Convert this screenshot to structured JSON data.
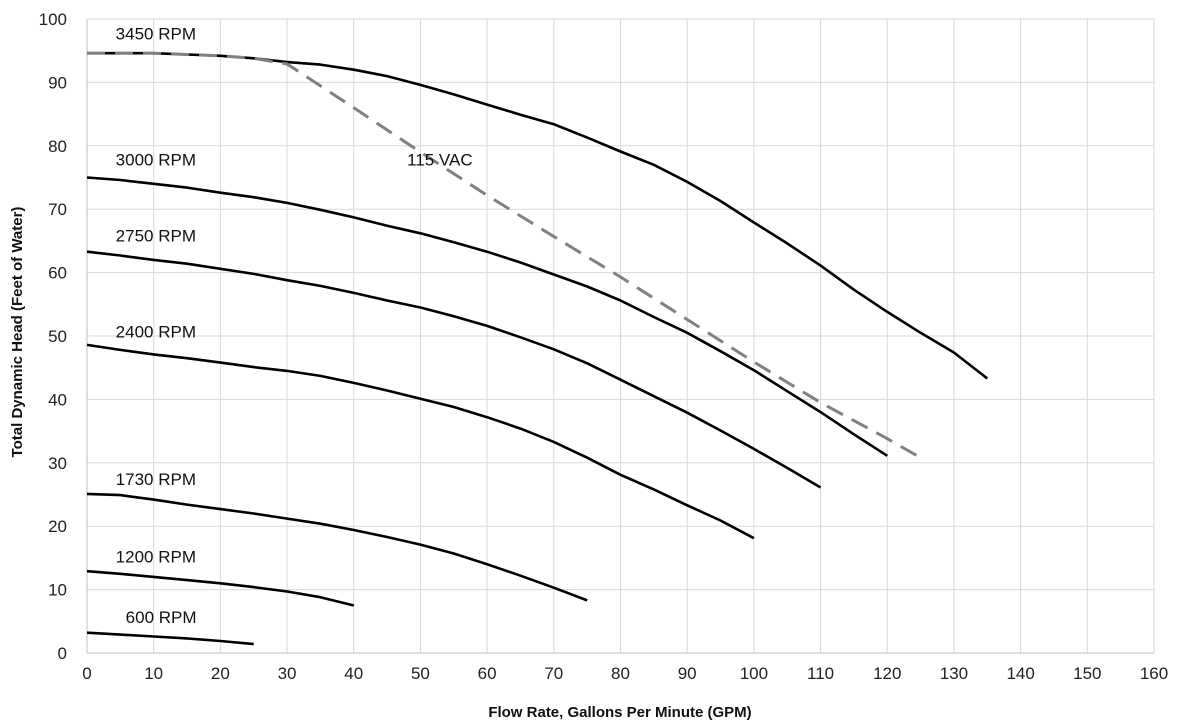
{
  "chart_data": {
    "type": "line",
    "title": "",
    "xlabel": "Flow Rate, Gallons Per Minute (GPM)",
    "ylabel": "Total Dynamic Head (Feet of Water)",
    "xlim": [
      0,
      160
    ],
    "ylim": [
      0,
      100
    ],
    "x_ticks": [
      0,
      10,
      20,
      30,
      40,
      50,
      60,
      70,
      80,
      90,
      100,
      110,
      120,
      130,
      140,
      150,
      160
    ],
    "y_ticks": [
      0,
      10,
      20,
      30,
      40,
      50,
      60,
      70,
      80,
      90,
      100
    ],
    "grid": true,
    "series": [
      {
        "name": "3450 RPM",
        "style": "solid",
        "color": "#000000",
        "x": [
          0,
          5,
          10,
          15,
          20,
          25,
          30,
          35,
          40,
          45,
          50,
          55,
          60,
          65,
          70,
          75,
          80,
          85,
          90,
          95,
          100,
          105,
          110,
          115,
          120,
          125,
          130,
          135
        ],
        "y": [
          94.6,
          94.6,
          94.6,
          94.4,
          94.2,
          93.8,
          93.2,
          92.8,
          92.0,
          91.0,
          89.6,
          88.1,
          86.5,
          84.9,
          83.4,
          81.3,
          79.1,
          77.0,
          74.3,
          71.3,
          67.9,
          64.6,
          61.1,
          57.3,
          53.8,
          50.5,
          47.4,
          43.3
        ]
      },
      {
        "name": "3000 RPM",
        "style": "solid",
        "color": "#000000",
        "x": [
          0,
          5,
          10,
          15,
          20,
          25,
          30,
          35,
          40,
          45,
          50,
          55,
          60,
          65,
          70,
          75,
          80,
          85,
          90,
          95,
          100,
          105,
          110,
          115,
          120
        ],
        "y": [
          75.0,
          74.6,
          74.0,
          73.4,
          72.6,
          71.9,
          71.0,
          69.9,
          68.7,
          67.4,
          66.2,
          64.8,
          63.3,
          61.6,
          59.7,
          57.8,
          55.6,
          53.0,
          50.5,
          47.6,
          44.6,
          41.3,
          38.0,
          34.5,
          31.1
        ]
      },
      {
        "name": "2750 RPM",
        "style": "solid",
        "color": "#000000",
        "x": [
          0,
          5,
          10,
          15,
          20,
          25,
          30,
          35,
          40,
          45,
          50,
          55,
          60,
          65,
          70,
          75,
          80,
          85,
          90,
          95,
          100,
          105,
          110
        ],
        "y": [
          63.3,
          62.7,
          62.0,
          61.4,
          60.6,
          59.8,
          58.8,
          57.9,
          56.8,
          55.6,
          54.5,
          53.1,
          51.6,
          49.8,
          47.9,
          45.7,
          43.1,
          40.5,
          37.9,
          35.1,
          32.2,
          29.2,
          26.1
        ]
      },
      {
        "name": "2400 RPM",
        "style": "solid",
        "color": "#000000",
        "x": [
          0,
          5,
          10,
          15,
          20,
          25,
          30,
          35,
          40,
          45,
          50,
          55,
          60,
          65,
          70,
          75,
          80,
          85,
          90,
          95,
          100
        ],
        "y": [
          48.6,
          47.8,
          47.1,
          46.5,
          45.8,
          45.1,
          44.5,
          43.7,
          42.6,
          41.4,
          40.1,
          38.8,
          37.2,
          35.4,
          33.3,
          30.8,
          28.1,
          25.8,
          23.3,
          20.9,
          18.1
        ]
      },
      {
        "name": "1730 RPM",
        "style": "solid",
        "color": "#000000",
        "x": [
          0,
          5,
          10,
          15,
          20,
          25,
          30,
          35,
          40,
          45,
          50,
          55,
          60,
          65,
          70,
          75
        ],
        "y": [
          25.1,
          24.9,
          24.2,
          23.4,
          22.7,
          22.0,
          21.2,
          20.4,
          19.4,
          18.3,
          17.1,
          15.7,
          14.0,
          12.2,
          10.3,
          8.3
        ]
      },
      {
        "name": "1200 RPM",
        "style": "solid",
        "color": "#000000",
        "x": [
          0,
          5,
          10,
          15,
          20,
          25,
          30,
          35,
          40
        ],
        "y": [
          12.9,
          12.5,
          12.0,
          11.5,
          11.0,
          10.4,
          9.7,
          8.8,
          7.5
        ]
      },
      {
        "name": "600 RPM",
        "style": "solid",
        "color": "#000000",
        "x": [
          0,
          5,
          10,
          15,
          20,
          25
        ],
        "y": [
          3.2,
          2.9,
          2.6,
          2.3,
          1.9,
          1.4
        ]
      },
      {
        "name": "115 VAC",
        "style": "dashed",
        "color": "#808080",
        "x": [
          0,
          5,
          10,
          15,
          20,
          25,
          30,
          40,
          50,
          60,
          70,
          80,
          90,
          100,
          110,
          120,
          125
        ],
        "y": [
          94.6,
          94.6,
          94.6,
          94.4,
          94.2,
          93.8,
          92.9,
          86.0,
          79.0,
          72.2,
          65.7,
          59.3,
          52.6,
          45.9,
          39.5,
          33.8,
          30.8
        ]
      }
    ],
    "curve_labels": [
      {
        "series": "3450 RPM",
        "text": "3450 RPM",
        "x": 4.3,
        "y": 96.8
      },
      {
        "series": "3000 RPM",
        "text": "3000 RPM",
        "x": 4.3,
        "y": 76.9
      },
      {
        "series": "2750 RPM",
        "text": "2750 RPM",
        "x": 4.3,
        "y": 64.9
      },
      {
        "series": "2400 RPM",
        "text": "2400 RPM",
        "x": 4.3,
        "y": 49.8
      },
      {
        "series": "1730 RPM",
        "text": "1730 RPM",
        "x": 4.3,
        "y": 26.5
      },
      {
        "series": "1200 RPM",
        "text": "1200 RPM",
        "x": 4.3,
        "y": 14.3
      },
      {
        "series": "600 RPM",
        "text": "600 RPM",
        "x": 5.8,
        "y": 4.7
      },
      {
        "series": "115 VAC",
        "text": "115 VAC",
        "x": 48.0,
        "y": 76.9
      }
    ],
    "colors": {
      "grid": "#d9d9d9",
      "axis": "#bfbfbf",
      "text": "#222222"
    }
  }
}
